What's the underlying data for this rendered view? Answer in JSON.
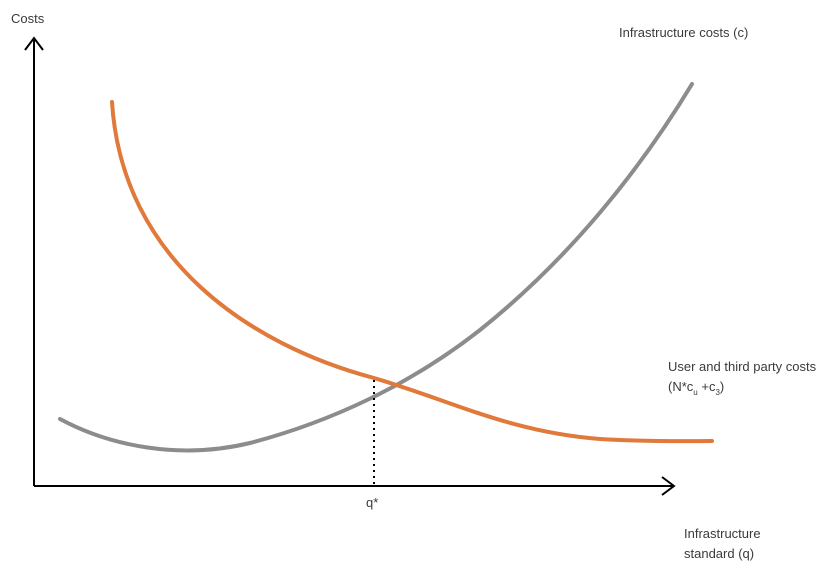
{
  "y_axis_label": "Costs",
  "x_axis_label_line1": "Infrastructure",
  "x_axis_label_line2": "standard (q)",
  "infrastructure_curve": {
    "label": "Infrastructure costs (c)",
    "color": "#8c8c8c"
  },
  "user_curve": {
    "label_line1": "User and third party costs",
    "label_line2_prefix": "(N*c",
    "label_line2_sub1": "u",
    "label_line2_mid": " +c",
    "label_line2_sub2": "3",
    "label_line2_suffix": ")",
    "color": "#e0793a"
  },
  "optimum_label": "q*",
  "axis_color": "#000000"
}
